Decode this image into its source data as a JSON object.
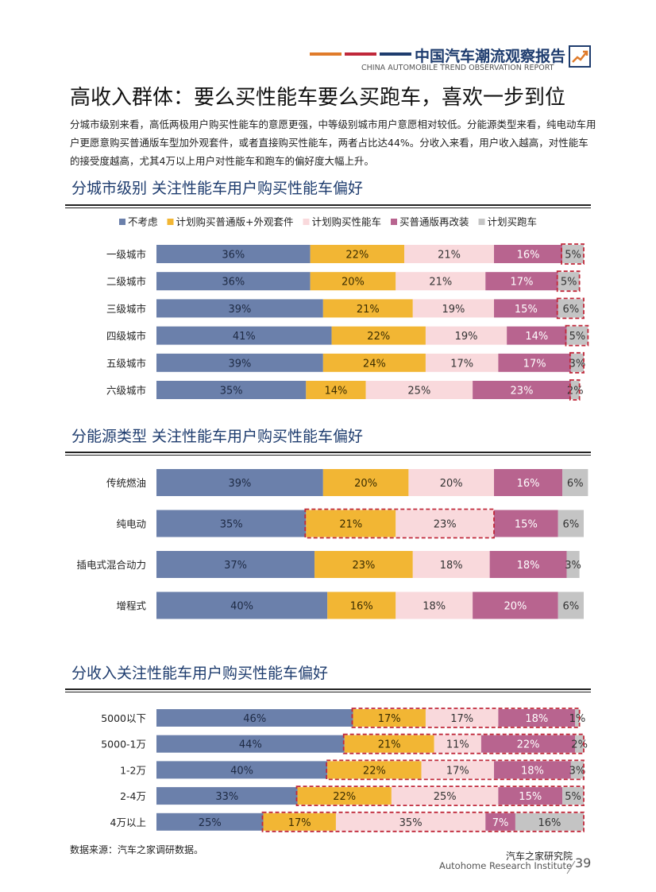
{
  "header": {
    "title_cn": "中国汽车潮流观察报告",
    "title_en": "CHINA AUTOMOBILE TREND OBSERVATION REPORT"
  },
  "page_title": "高收入群体：要么买性能车要么买跑车，喜欢一步到位",
  "intro": "分城市级别来看，高低两极用户购买性能车的意愿更强，中等级别城市用户意愿相对较低。分能源类型来看，纯电动车用户更愿意购买普通版车型加外观套件，或者直接购买性能车，两者占比达44%。分收入来看，用户收入越高，对性能车的接受度越高，尤其4万以上用户对性能车和跑车的偏好度大幅上升。",
  "colors": {
    "s1": "#6b80ab",
    "s2": "#f2b634",
    "s3": "#f9d9dc",
    "s4": "#b8648f",
    "s5": "#c4c4c4",
    "highlight": "#c0283a"
  },
  "legend": [
    "不考虑",
    "计划购买普通版+外观套件",
    "计划购买性能车",
    "买普通版再改装",
    "计划买跑车"
  ],
  "chart_data": [
    {
      "type": "bar",
      "orientation": "horizontal-stacked-100",
      "title": "分城市级别 关注性能车用户购买性能车偏好",
      "categories": [
        "一级城市",
        "二级城市",
        "三级城市",
        "四级城市",
        "五级城市",
        "六级城市"
      ],
      "series": [
        {
          "name": "不考虑",
          "values": [
            36,
            36,
            39,
            41,
            39,
            35
          ]
        },
        {
          "name": "计划购买普通版+外观套件",
          "values": [
            22,
            20,
            21,
            22,
            24,
            14
          ]
        },
        {
          "name": "计划购买性能车",
          "values": [
            21,
            21,
            19,
            19,
            17,
            25
          ]
        },
        {
          "name": "买普通版再改装",
          "values": [
            16,
            17,
            15,
            14,
            17,
            23
          ]
        },
        {
          "name": "计划买跑车",
          "values": [
            5,
            5,
            6,
            5,
            3,
            2
          ]
        }
      ],
      "highlights": [
        {
          "rows": [
            0,
            1,
            2,
            3,
            4,
            5
          ],
          "series": [
            4,
            4
          ]
        }
      ]
    },
    {
      "type": "bar",
      "orientation": "horizontal-stacked-100",
      "title": "分能源类型 关注性能车用户购买性能车偏好",
      "categories": [
        "传统燃油",
        "纯电动",
        "插电式混合动力",
        "增程式"
      ],
      "series": [
        {
          "name": "不考虑",
          "values": [
            39,
            35,
            37,
            40
          ]
        },
        {
          "name": "计划购买普通版+外观套件",
          "values": [
            20,
            21,
            23,
            16
          ]
        },
        {
          "name": "计划购买性能车",
          "values": [
            20,
            23,
            18,
            18
          ]
        },
        {
          "name": "买普通版再改装",
          "values": [
            16,
            15,
            18,
            20
          ]
        },
        {
          "name": "计划买跑车",
          "values": [
            6,
            6,
            3,
            6
          ]
        }
      ],
      "highlights": [
        {
          "rows": [
            1
          ],
          "series": [
            1,
            2
          ]
        }
      ]
    },
    {
      "type": "bar",
      "orientation": "horizontal-stacked-100",
      "title": "分收入关注性能车用户购买性能车偏好",
      "categories": [
        "5000以下",
        "5000-1万",
        "1-2万",
        "2-4万",
        "4万以上"
      ],
      "series": [
        {
          "name": "不考虑",
          "values": [
            46,
            44,
            40,
            33,
            25
          ]
        },
        {
          "name": "计划购买普通版+外观套件",
          "values": [
            17,
            21,
            22,
            22,
            17
          ]
        },
        {
          "name": "计划购买性能车",
          "values": [
            17,
            11,
            17,
            25,
            35
          ]
        },
        {
          "name": "买普通版再改装",
          "values": [
            18,
            22,
            18,
            15,
            7
          ]
        },
        {
          "name": "计划买跑车",
          "values": [
            1,
            2,
            3,
            5,
            16
          ]
        }
      ],
      "highlights": [
        {
          "rows": [
            0,
            1,
            2,
            3,
            4
          ],
          "series": [
            1,
            4
          ]
        }
      ]
    }
  ],
  "source": "数据来源：汽车之家调研数据。",
  "footer": {
    "org_cn": "汽车之家研究院",
    "org_en": "Autohome Research Institute",
    "page": "39"
  }
}
